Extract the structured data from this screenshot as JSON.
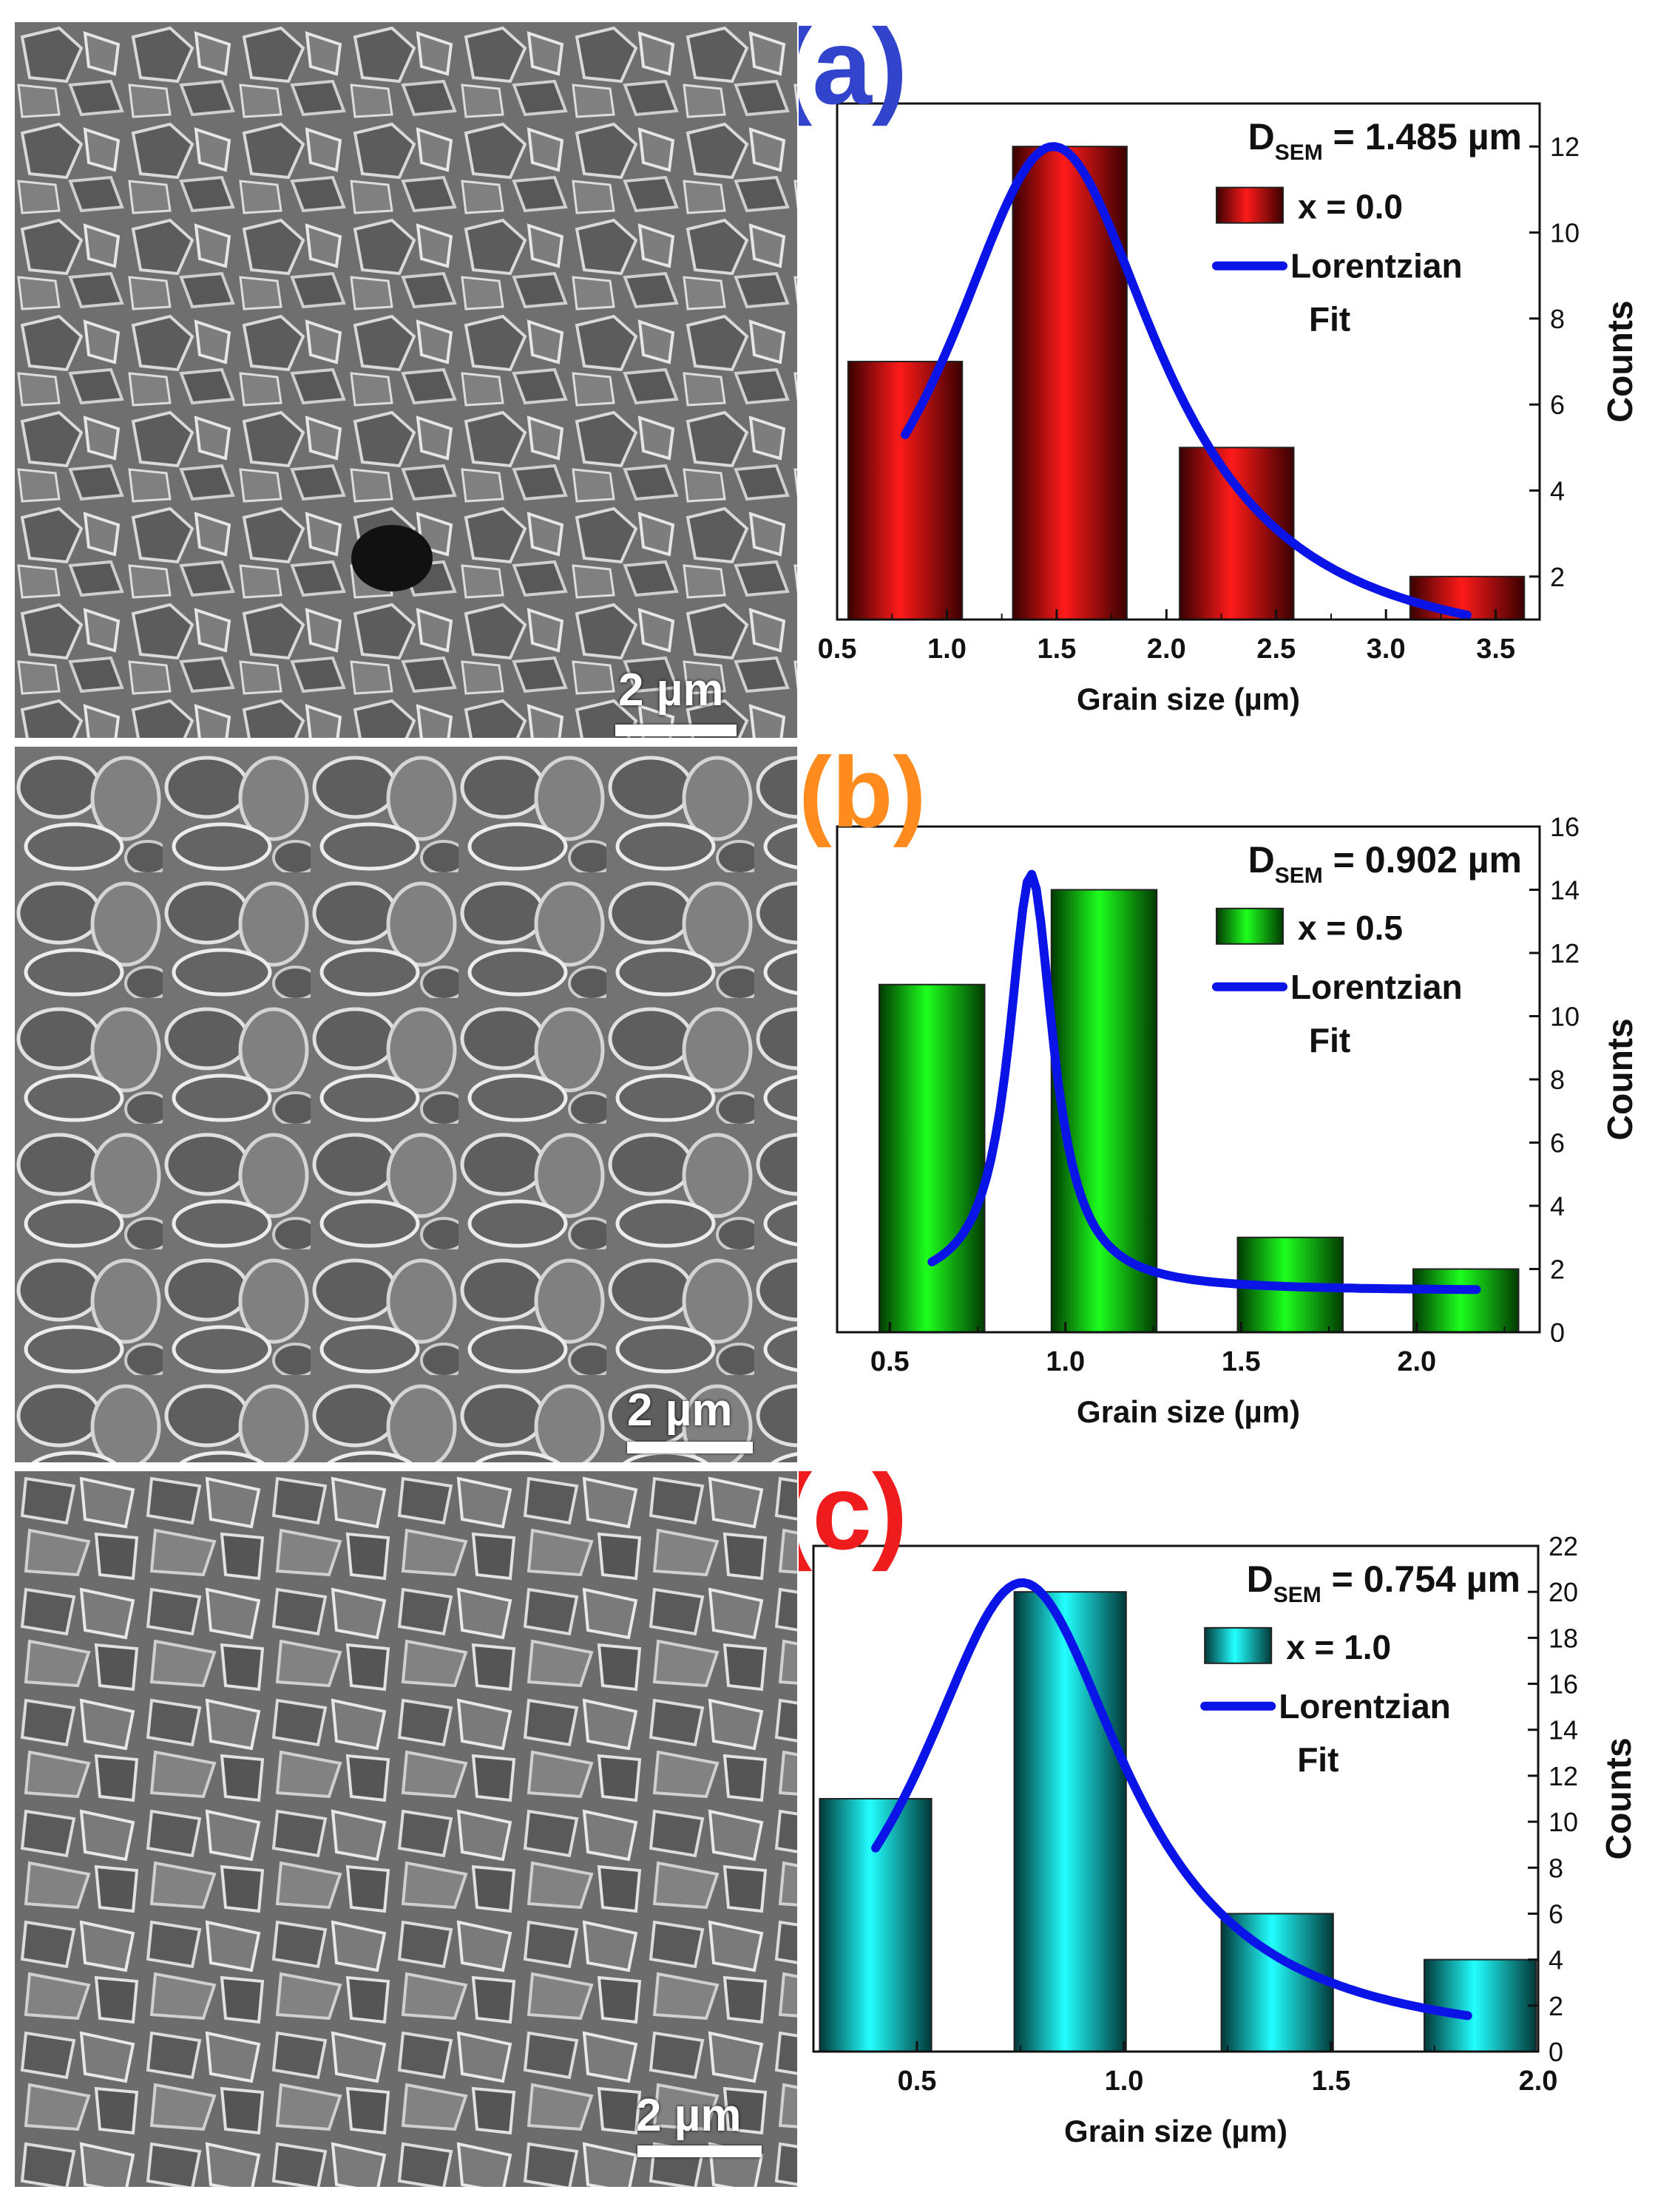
{
  "panels": [
    {
      "id": "a",
      "label": "(a)",
      "label_color": "#3344cc",
      "dsem_prefix": "D",
      "dsem_sub": "SEM",
      "dsem_value": " = 1.485 µm",
      "scale_bar": "2 µm",
      "bar_color_edge": "#3a0000",
      "bar_color_mid": "#ff1a1a",
      "legend_sample": "x = 0.0",
      "legend_fit_1": "Lorentzian",
      "legend_fit_2": "Fit",
      "fit_color": "#0a14e6"
    },
    {
      "id": "b",
      "label": "(b)",
      "label_color": "#ff8a1e",
      "dsem_prefix": "D",
      "dsem_sub": "SEM",
      "dsem_value": " = 0.902 µm",
      "scale_bar": "2 µm",
      "bar_color_edge": "#013a01",
      "bar_color_mid": "#1dff1d",
      "legend_sample": "x = 0.5",
      "legend_fit_1": "Lorentzian",
      "legend_fit_2": "Fit",
      "fit_color": "#0a14e6"
    },
    {
      "id": "c",
      "label": "(c)",
      "label_color": "#ee1c1c",
      "dsem_prefix": "D",
      "dsem_sub": "SEM",
      "dsem_value": " = 0.754 µm",
      "scale_bar": "2 µm",
      "bar_color_edge": "#013838",
      "bar_color_mid": "#22ffff",
      "legend_sample": "x = 1.0",
      "legend_fit_1": "Lorentzian",
      "legend_fit_2": "Fit",
      "fit_color": "#0a14e6"
    }
  ],
  "chart_data": [
    {
      "type": "bar",
      "xlabel": "Grain size (µm)",
      "ylabel": "Counts",
      "xlim": [
        0.5,
        3.7
      ],
      "ylim": [
        1,
        13
      ],
      "xticks": [
        0.5,
        1.0,
        1.5,
        2.0,
        2.5,
        3.0,
        3.5
      ],
      "xtick_labels": [
        "0.5",
        "1.0",
        "1.5",
        "2.0",
        "2.5",
        "3.0",
        "3.5"
      ],
      "yticks": [
        2,
        4,
        6,
        8,
        10,
        12
      ],
      "ytick_labels": [
        "2",
        "4",
        "6",
        "8",
        "10",
        "12"
      ],
      "bar_width": 0.52,
      "bars": [
        {
          "x": 0.81,
          "value": 7
        },
        {
          "x": 1.56,
          "value": 12
        },
        {
          "x": 2.32,
          "value": 5
        },
        {
          "x": 3.37,
          "value": 2
        }
      ],
      "fit": {
        "type": "lorentzian",
        "x0": 1.485,
        "w": 1.2,
        "A": 12.0,
        "y0": 0.0,
        "x_range": [
          0.81,
          3.37
        ],
        "points": [
          [
            0.81,
            6.0
          ],
          [
            1.0,
            8.9
          ],
          [
            1.2,
            11.0
          ],
          [
            1.49,
            12.0
          ],
          [
            1.8,
            10.3
          ],
          [
            2.1,
            7.7
          ],
          [
            2.4,
            5.4
          ],
          [
            2.8,
            3.5
          ],
          [
            3.1,
            2.6
          ],
          [
            3.37,
            1.9
          ]
        ]
      },
      "legend_position": "top-right"
    },
    {
      "type": "bar",
      "xlabel": "Grain size (µm)",
      "ylabel": "Counts",
      "xlim": [
        0.35,
        2.35
      ],
      "ylim": [
        0,
        16
      ],
      "xticks": [
        0.5,
        1.0,
        1.5,
        2.0
      ],
      "xtick_labels": [
        "0.5",
        "1.0",
        "1.5",
        "2.0"
      ],
      "yticks": [
        0,
        2,
        4,
        6,
        8,
        10,
        12,
        14,
        16
      ],
      "ytick_labels": [
        "0",
        "2",
        "4",
        "6",
        "8",
        "10",
        "12",
        "14",
        "16"
      ],
      "bar_width": 0.3,
      "bars": [
        {
          "x": 0.62,
          "value": 11
        },
        {
          "x": 1.11,
          "value": 14
        },
        {
          "x": 1.64,
          "value": 3
        },
        {
          "x": 2.14,
          "value": 2
        }
      ],
      "fit": {
        "type": "lorentzian",
        "x0": 0.902,
        "w": 0.155,
        "A": 13.2,
        "y0": 1.3,
        "x_range": [
          0.62,
          2.17
        ],
        "points": [
          [
            0.62,
            3.2
          ],
          [
            0.75,
            6.5
          ],
          [
            0.85,
            12.0
          ],
          [
            0.902,
            14.5
          ],
          [
            0.95,
            13.0
          ],
          [
            1.05,
            7.5
          ],
          [
            1.2,
            3.9
          ],
          [
            1.4,
            2.3
          ],
          [
            1.7,
            1.7
          ],
          [
            2.17,
            1.45
          ]
        ]
      },
      "legend_position": "top-right"
    },
    {
      "type": "bar",
      "xlabel": "Grain size (µm)",
      "ylabel": "Counts",
      "xlim": [
        0.25,
        2.0
      ],
      "ylim": [
        0,
        22
      ],
      "xticks": [
        0.5,
        1.0,
        1.5,
        2.0
      ],
      "xtick_labels": [
        "0.5",
        "1.0",
        "1.5",
        "2.0"
      ],
      "yticks": [
        0,
        2,
        4,
        6,
        8,
        10,
        12,
        14,
        16,
        18,
        20,
        22
      ],
      "ytick_labels": [
        "0",
        "2",
        "4",
        "6",
        "8",
        "10",
        "12",
        "14",
        "16",
        "18",
        "20",
        "22"
      ],
      "bar_width": 0.27,
      "bars": [
        {
          "x": 0.4,
          "value": 11
        },
        {
          "x": 0.87,
          "value": 20
        },
        {
          "x": 1.37,
          "value": 6
        },
        {
          "x": 1.86,
          "value": 4
        }
      ],
      "fit": {
        "type": "lorentzian",
        "x0": 0.754,
        "w": 0.62,
        "A": 20.4,
        "y0": 0.0,
        "x_range": [
          0.4,
          1.83
        ],
        "points": [
          [
            0.4,
            9.2
          ],
          [
            0.55,
            15.5
          ],
          [
            0.68,
            19.7
          ],
          [
            0.754,
            20.4
          ],
          [
            0.85,
            19.2
          ],
          [
            1.0,
            15.0
          ],
          [
            1.2,
            9.2
          ],
          [
            1.4,
            5.5
          ],
          [
            1.6,
            3.6
          ],
          [
            1.83,
            2.3
          ]
        ]
      },
      "legend_position": "top-right"
    }
  ]
}
